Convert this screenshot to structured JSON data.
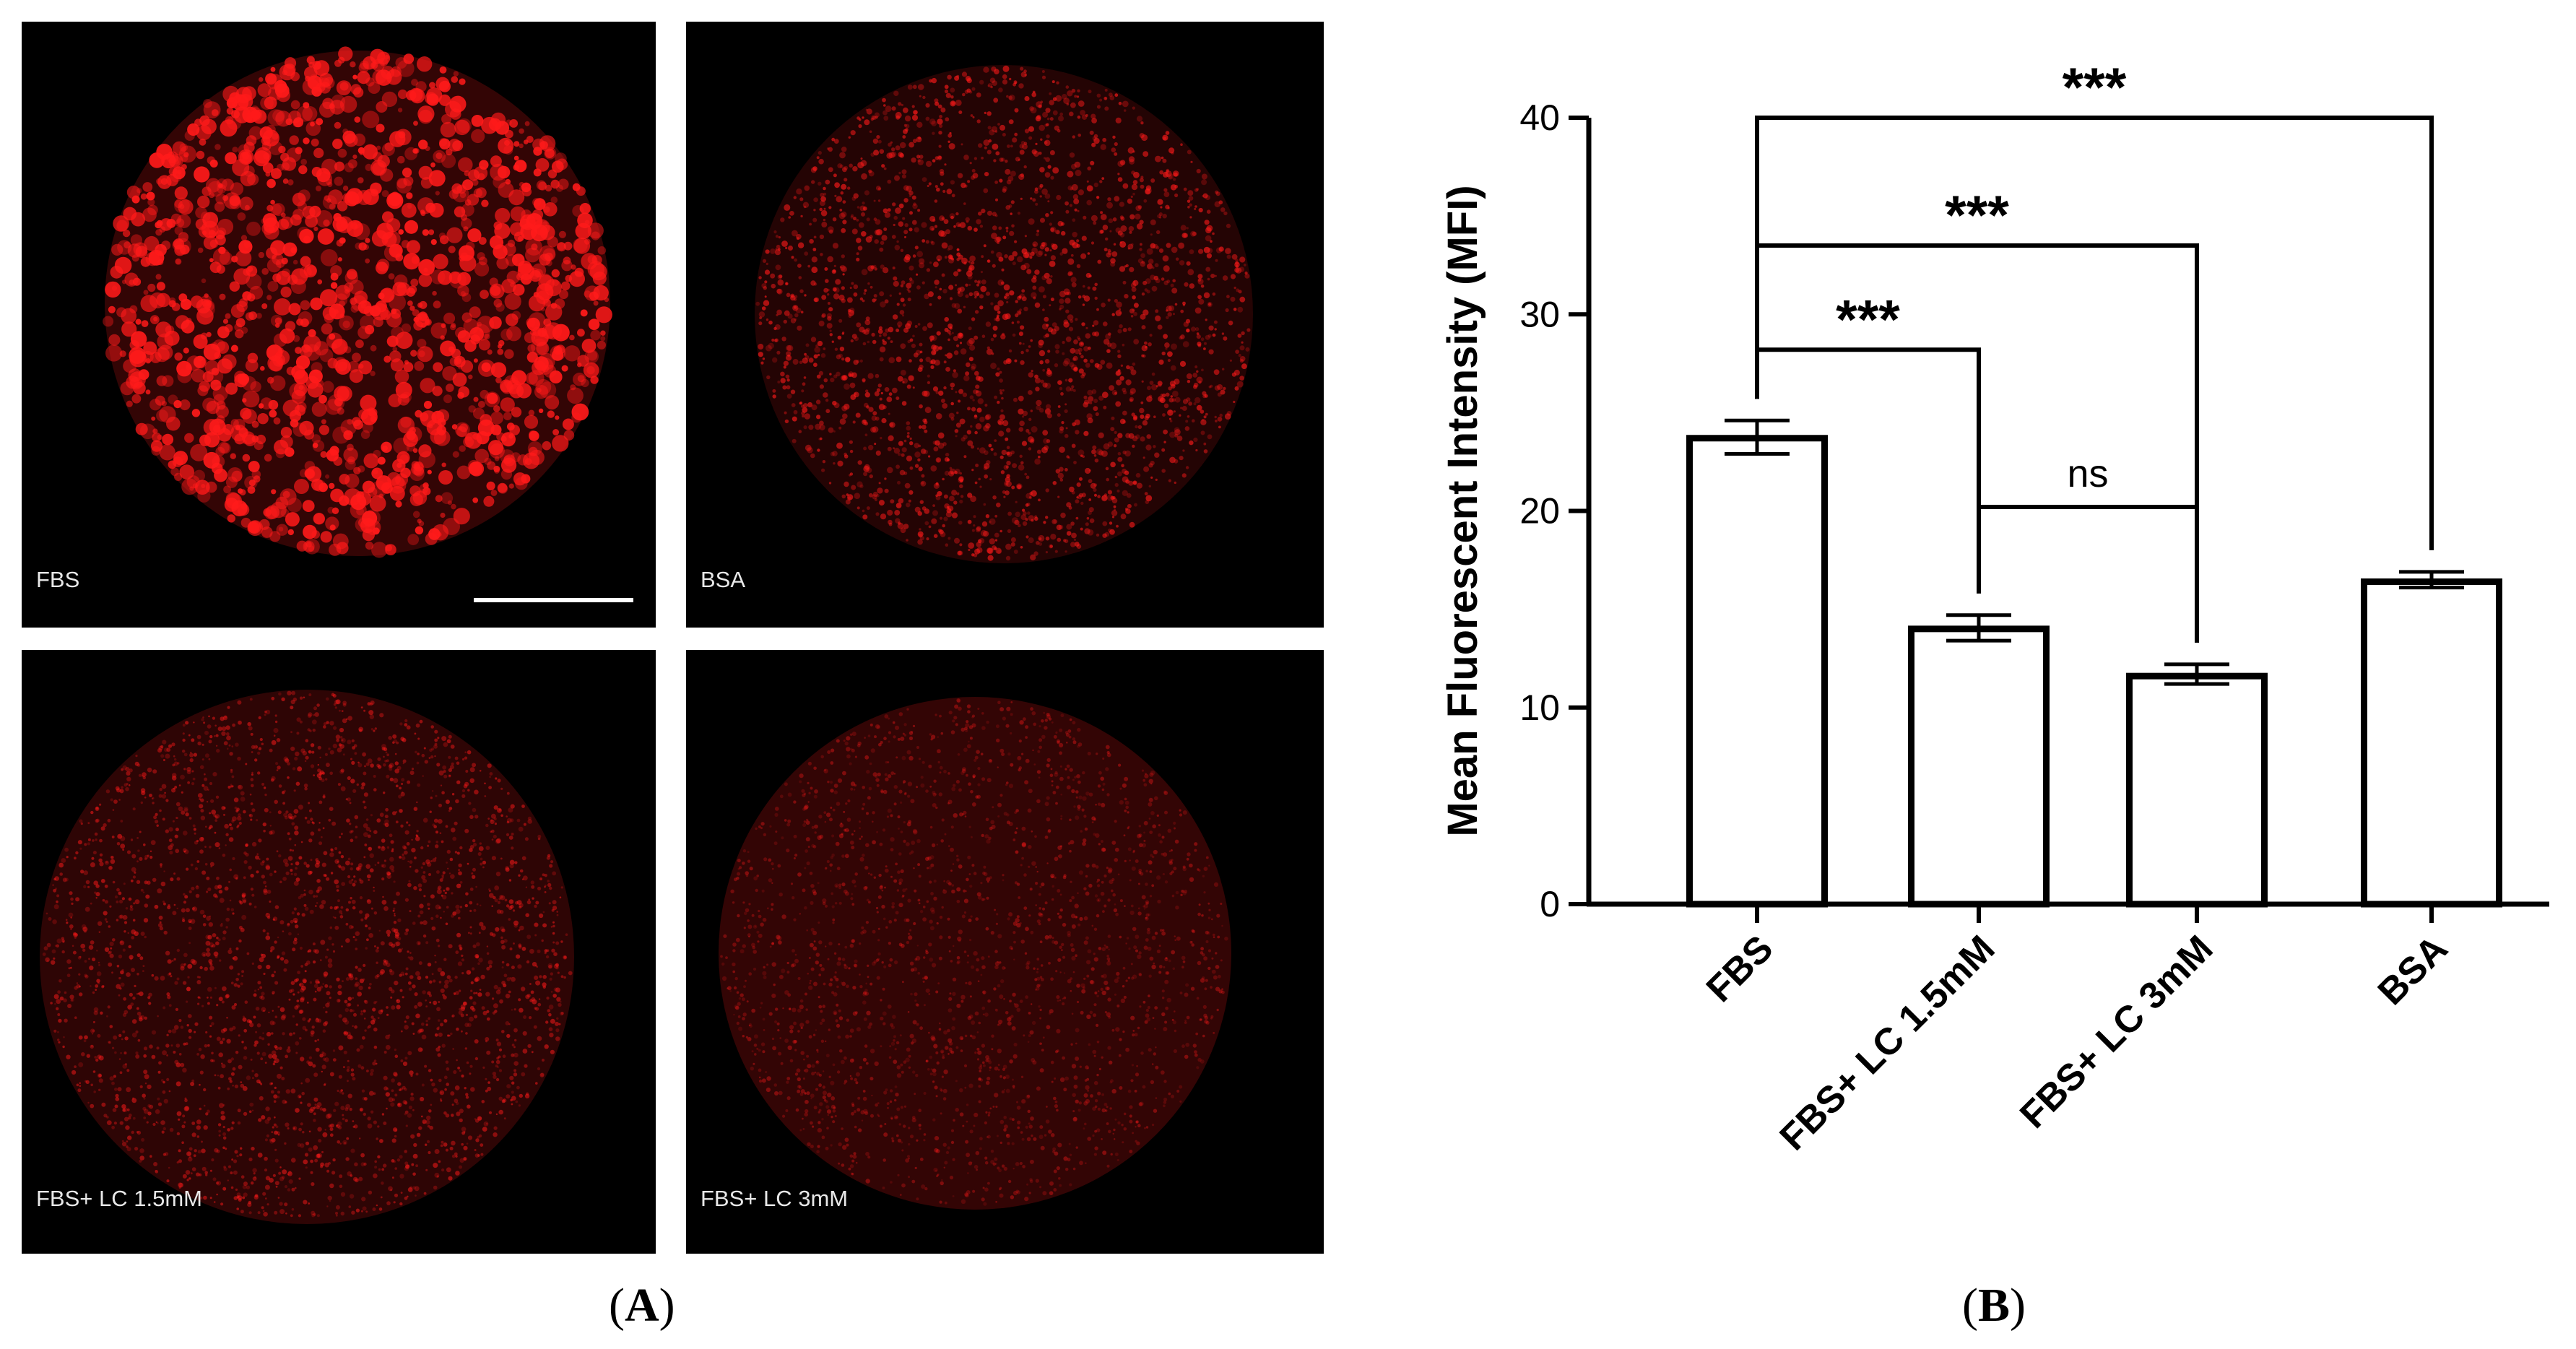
{
  "panel_a": {
    "images": [
      {
        "label": "FBS",
        "intensity": "bright"
      },
      {
        "label": "BSA",
        "intensity": "medium"
      },
      {
        "label": "FBS+ LC 1.5mM",
        "intensity": "dim"
      },
      {
        "label": "FBS+ LC 3mM",
        "intensity": "dimmest"
      }
    ],
    "caption_open": "(",
    "caption_letter": "A",
    "caption_close": ")"
  },
  "panel_b": {
    "caption_open": "(",
    "caption_letter": "B",
    "caption_close": ")"
  },
  "colors": {
    "fluorescence": "#ff1a1a",
    "bar_fill": "#ffffff",
    "bar_stroke": "#000000",
    "panel_background": "#000000"
  },
  "chart_data": {
    "type": "bar",
    "categories": [
      "FBS",
      "FBS+ LC 1.5mM",
      "FBS+ LC 3mM",
      "BSA"
    ],
    "values": [
      23.7,
      14.0,
      11.6,
      16.4
    ],
    "error_plus": [
      0.9,
      0.7,
      0.6,
      0.5
    ],
    "error_minus": [
      0.8,
      0.6,
      0.4,
      0.3
    ],
    "ylabel": "Mean Fluorescent Intensity (MFI)",
    "xlabel": "",
    "ylim": [
      0,
      40
    ],
    "yticks": [
      0,
      10,
      20,
      30,
      40
    ],
    "grid": false,
    "significance": [
      {
        "from": 0,
        "to": 3,
        "label": "***",
        "level": 40
      },
      {
        "from": 0,
        "to": 2,
        "label": "***",
        "level": 33.5
      },
      {
        "from": 0,
        "to": 1,
        "label": "***",
        "level": 28.2
      },
      {
        "from": 1,
        "to": 2,
        "label": "ns",
        "level": 20.2
      }
    ]
  }
}
